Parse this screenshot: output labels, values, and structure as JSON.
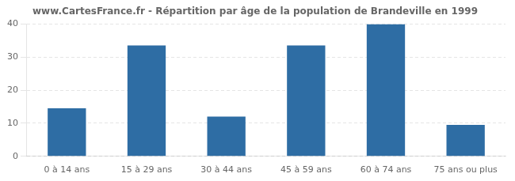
{
  "chart_data": {
    "type": "bar",
    "title": "www.CartesFrance.fr - Répartition par âge de la population de Brandeville en 1999",
    "categories": [
      "0 à 14 ans",
      "15 à 29 ans",
      "30 à 44 ans",
      "45 à 59 ans",
      "60 à 74 ans",
      "75 ans ou plus"
    ],
    "values": [
      14.5,
      33.5,
      12.0,
      33.5,
      40.0,
      9.5
    ],
    "color": "#2e6da4",
    "ylim": [
      0,
      40
    ],
    "yticks": [
      0,
      10,
      20,
      30,
      40
    ],
    "grid": true
  }
}
